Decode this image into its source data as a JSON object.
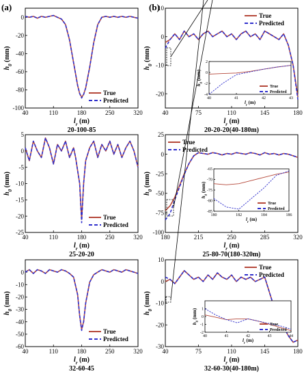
{
  "colors": {
    "true": "#b5483a",
    "pred": "#2e2ecc",
    "axis": "#000000"
  },
  "legend": {
    "true": "True",
    "pred": "Predicted"
  },
  "columns": [
    {
      "label": "(a)"
    },
    {
      "label": "(b)"
    }
  ],
  "chart_data": [
    {
      "type": "line",
      "col": 0,
      "row": 0,
      "xlabel": "l_r (m)",
      "ylabel": "h_0 (mm)",
      "caption": "20-100-85",
      "xlim": [
        40,
        320
      ],
      "ylim": [
        -100,
        10
      ],
      "xticks": [
        40,
        110,
        180,
        250,
        320
      ],
      "yticks": [
        0,
        -20,
        -40,
        -60,
        -80,
        -100
      ],
      "legend_pos": "lower-right",
      "x": [
        40,
        50,
        60,
        70,
        80,
        90,
        100,
        110,
        120,
        130,
        140,
        150,
        160,
        170,
        175,
        180,
        185,
        190,
        200,
        210,
        220,
        230,
        240,
        250,
        260,
        270,
        280,
        290,
        300,
        310,
        320
      ],
      "series": [
        {
          "key": "true",
          "values": [
            1,
            0,
            1,
            -1,
            1,
            0,
            1,
            2,
            0,
            -2,
            -8,
            -25,
            -50,
            -75,
            -84,
            -88,
            -85,
            -78,
            -55,
            -28,
            -8,
            0,
            1,
            0,
            1,
            0,
            1,
            0,
            1,
            0,
            -1
          ]
        },
        {
          "key": "pred",
          "values": [
            1,
            0,
            1,
            -1,
            1,
            0,
            1,
            2,
            0,
            -2,
            -8,
            -25,
            -50,
            -75,
            -84,
            -89,
            -85,
            -78,
            -55,
            -28,
            -8,
            0,
            1,
            0,
            1,
            0,
            1,
            0,
            1,
            0,
            -1
          ]
        }
      ]
    },
    {
      "type": "line",
      "col": 0,
      "row": 1,
      "xlabel": "l_r (m)",
      "ylabel": "h_0 (mm)",
      "caption": "25-20-20",
      "xlim": [
        40,
        320
      ],
      "ylim": [
        -25,
        5
      ],
      "xticks": [
        40,
        110,
        180,
        250,
        320
      ],
      "yticks": [
        5,
        0,
        -5,
        -10,
        -15,
        -20,
        -25
      ],
      "legend_pos": "lower-right",
      "x": [
        40,
        50,
        60,
        70,
        80,
        90,
        100,
        110,
        120,
        130,
        140,
        150,
        160,
        165,
        170,
        175,
        180,
        185,
        190,
        200,
        210,
        220,
        230,
        240,
        250,
        260,
        270,
        280,
        290,
        300,
        310,
        320
      ],
      "series": [
        {
          "key": "true",
          "values": [
            1,
            -3,
            3,
            0,
            -2,
            4,
            1,
            -4,
            2,
            0,
            3,
            -2,
            1,
            -2,
            -6,
            -10,
            -21,
            -10,
            -3,
            1,
            3,
            -2,
            2,
            0,
            3,
            -1,
            2,
            -2,
            1,
            3,
            0,
            -5
          ]
        },
        {
          "key": "pred",
          "values": [
            1,
            -3,
            3,
            0,
            -2,
            4,
            1,
            -4,
            2,
            0,
            3,
            -2,
            1,
            -2,
            -6,
            -10,
            -22,
            -10,
            -3,
            1,
            3,
            -2,
            2,
            0,
            3,
            -1,
            2,
            -2,
            1,
            3,
            0,
            -5
          ]
        }
      ]
    },
    {
      "type": "line",
      "col": 0,
      "row": 2,
      "xlabel": "l_r (m)",
      "ylabel": "h_0 (mm)",
      "caption": "32-60-45",
      "xlim": [
        40,
        320
      ],
      "ylim": [
        -60,
        10
      ],
      "xticks": [
        40,
        110,
        180,
        250,
        320
      ],
      "yticks": [
        0,
        -10,
        -20,
        -30,
        -40,
        -50,
        -60
      ],
      "legend_pos": "lower-right",
      "x": [
        40,
        50,
        60,
        70,
        80,
        90,
        100,
        110,
        120,
        130,
        140,
        150,
        160,
        170,
        175,
        180,
        185,
        190,
        200,
        210,
        220,
        230,
        240,
        250,
        260,
        270,
        280,
        290,
        300,
        310,
        320
      ],
      "series": [
        {
          "key": "true",
          "values": [
            0,
            2,
            -1,
            2,
            1,
            -1,
            2,
            1,
            0,
            2,
            1,
            -1,
            -4,
            -18,
            -35,
            -46,
            -40,
            -25,
            -8,
            -2,
            0,
            2,
            1,
            0,
            2,
            1,
            0,
            2,
            1,
            0,
            -1
          ]
        },
        {
          "key": "pred",
          "values": [
            0,
            2,
            -1,
            2,
            1,
            -1,
            2,
            1,
            0,
            2,
            1,
            -1,
            -4,
            -18,
            -35,
            -47,
            -40,
            -25,
            -8,
            -2,
            0,
            2,
            1,
            0,
            2,
            1,
            0,
            2,
            1,
            0,
            -1
          ]
        }
      ]
    },
    {
      "type": "line",
      "col": 1,
      "row": 0,
      "xlabel": "l_r (m)",
      "ylabel": "h_0 (mm)",
      "caption": "20-20-20(40-180m)",
      "xlim": [
        40,
        180
      ],
      "ylim": [
        -25,
        10
      ],
      "xticks": [
        40,
        75,
        110,
        145,
        180
      ],
      "yticks": [
        10,
        0,
        -10,
        -20
      ],
      "legend_pos": "top-right",
      "x": [
        40,
        45,
        50,
        55,
        60,
        65,
        70,
        75,
        80,
        85,
        90,
        95,
        100,
        105,
        110,
        115,
        120,
        125,
        130,
        135,
        140,
        145,
        150,
        155,
        160,
        165,
        170,
        175,
        180
      ],
      "series": [
        {
          "key": "true",
          "values": [
            -2,
            -1,
            1,
            -1,
            2,
            0,
            1,
            -1,
            1,
            2,
            0,
            1,
            2,
            0,
            1,
            -1,
            1,
            2,
            0,
            1,
            -1,
            2,
            1,
            0,
            -1,
            1,
            -3,
            -10,
            -21
          ]
        },
        {
          "key": "pred",
          "values": [
            -4,
            -1,
            1,
            -1,
            2,
            0,
            1,
            -1,
            1,
            2,
            0,
            1,
            2,
            0,
            1,
            -1,
            1,
            2,
            0,
            1,
            -1,
            2,
            1,
            0,
            -1,
            1,
            -3,
            -10,
            -22
          ]
        }
      ],
      "inset": {
        "xlim": [
          40,
          43
        ],
        "ylim": [
          -4,
          2
        ],
        "xticks": [
          40,
          41,
          42,
          43
        ],
        "yticks": [
          2,
          0,
          -2,
          -4
        ],
        "xlabel": "l_r (m)",
        "ylabel": "h_0 (mm)",
        "x": [
          40,
          40.5,
          41,
          41.5,
          42,
          42.5,
          43
        ],
        "series": [
          {
            "key": "true",
            "values": [
              -0.3,
              -0.2,
              -0.1,
              0.2,
              0.6,
              1.0,
              1.3
            ]
          },
          {
            "key": "pred",
            "values": [
              -4.0,
              -2.0,
              -0.4,
              0.1,
              0.6,
              1.0,
              1.3
            ]
          }
        ]
      }
    },
    {
      "type": "line",
      "col": 1,
      "row": 1,
      "xlabel": "l_r (m)",
      "ylabel": "h_0 (mm)",
      "caption": "25-80-70(180-320m)",
      "xlim": [
        180,
        320
      ],
      "ylim": [
        -100,
        25
      ],
      "xticks": [
        180,
        215,
        250,
        285,
        320
      ],
      "yticks": [
        25,
        0,
        -25,
        -50,
        -75,
        -100
      ],
      "legend_pos": "top-left",
      "x": [
        180,
        185,
        190,
        195,
        200,
        205,
        210,
        215,
        220,
        225,
        230,
        235,
        240,
        245,
        250,
        255,
        260,
        265,
        270,
        275,
        280,
        285,
        290,
        295,
        300,
        305,
        310,
        315,
        320
      ],
      "series": [
        {
          "key": "true",
          "values": [
            -72,
            -66,
            -55,
            -40,
            -25,
            -12,
            -2,
            2,
            1,
            0,
            2,
            1,
            -1,
            1,
            0,
            2,
            1,
            0,
            2,
            1,
            -1,
            2,
            0,
            1,
            -1,
            1,
            0,
            -2,
            -4
          ]
        },
        {
          "key": "pred",
          "values": [
            -84,
            -76,
            -58,
            -42,
            -26,
            -12,
            -2,
            2,
            1,
            0,
            2,
            1,
            -1,
            1,
            0,
            2,
            1,
            0,
            2,
            1,
            -1,
            2,
            0,
            1,
            -1,
            1,
            0,
            -2,
            -4
          ]
        }
      ],
      "inset": {
        "xlim": [
          180,
          186
        ],
        "ylim": [
          -85,
          -65
        ],
        "xticks": [
          180,
          182,
          184,
          186
        ],
        "yticks": [
          -65,
          -70,
          -75,
          -80,
          -85
        ],
        "xlabel": "l_r (m)",
        "ylabel": "h_0 (mm)",
        "x": [
          180,
          181,
          182,
          183,
          184,
          185,
          186
        ],
        "series": [
          {
            "key": "true",
            "values": [
              -72,
              -72.5,
              -72,
              -70.5,
              -69,
              -67.5,
              -66.5
            ]
          },
          {
            "key": "pred",
            "values": [
              -79,
              -83,
              -84,
              -79,
              -74,
              -68,
              -66
            ]
          }
        ]
      }
    },
    {
      "type": "line",
      "col": 1,
      "row": 2,
      "xlabel": "l_r (m)",
      "ylabel": "h_0 (mm)",
      "caption": "32-60-30(40-180m)",
      "xlim": [
        40,
        180
      ],
      "ylim": [
        -30,
        10
      ],
      "xticks": [
        40,
        75,
        110,
        145,
        180
      ],
      "yticks": [
        10,
        0,
        -10,
        -20,
        -30
      ],
      "legend_pos": "top-right",
      "x": [
        40,
        45,
        50,
        55,
        60,
        65,
        70,
        75,
        80,
        85,
        90,
        95,
        100,
        105,
        110,
        115,
        120,
        125,
        130,
        135,
        140,
        145,
        150,
        155,
        160,
        165,
        170,
        175,
        180
      ],
      "series": [
        {
          "key": "true",
          "values": [
            0,
            1,
            -1,
            2,
            5,
            3,
            1,
            2,
            0,
            3,
            1,
            4,
            2,
            1,
            3,
            0,
            2,
            1,
            2,
            0,
            1,
            2,
            -5,
            -12,
            -16,
            -21,
            -25,
            -28,
            -27
          ]
        },
        {
          "key": "pred",
          "values": [
            2,
            1,
            -1,
            2,
            5,
            3,
            1,
            2,
            0,
            3,
            1,
            4,
            2,
            1,
            3,
            0,
            2,
            1,
            2,
            0,
            1,
            2,
            -5,
            -12,
            -16,
            -21,
            -25,
            -28,
            -27
          ]
        }
      ],
      "inset": {
        "xlim": [
          40,
          44
        ],
        "ylim": [
          -2,
          2
        ],
        "xticks": [
          40,
          41,
          42,
          43,
          44
        ],
        "yticks": [
          1,
          0,
          -1,
          -2
        ],
        "xlabel": "l_r (m)",
        "ylabel": "h_0 (mm)",
        "x": [
          40,
          40.5,
          41,
          41.5,
          42,
          42.5,
          43,
          43.5,
          44
        ],
        "series": [
          {
            "key": "true",
            "values": [
              0.2,
              -0.1,
              -0.4,
              -0.3,
              -0.3,
              -0.6,
              -1.0,
              -1.4,
              -1.8
            ]
          },
          {
            "key": "pred",
            "values": [
              1.0,
              0.2,
              -0.4,
              -0.8,
              -0.3,
              -0.6,
              -0.9,
              -1.2,
              -1.6
            ]
          }
        ]
      }
    }
  ]
}
